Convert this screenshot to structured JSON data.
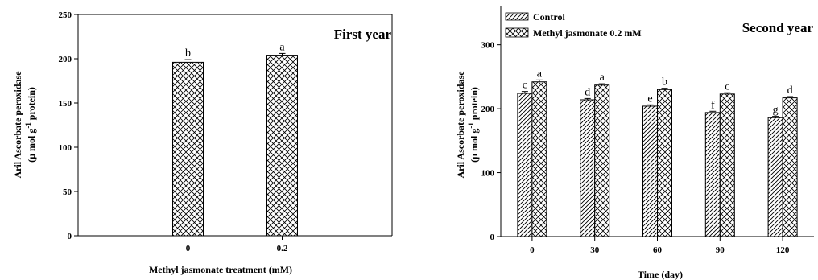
{
  "chart_data": [
    {
      "type": "bar",
      "title": "First year",
      "xlabel": "Methyl jasmonate treatment (mM)",
      "ylabel_line1": "Aril Ascorbate peroxidase",
      "ylabel_line2_prefix": "(µ mol g",
      "ylabel_line2_sup": "-1",
      "ylabel_line2_suffix": " protein)",
      "ylim": [
        0,
        250
      ],
      "yticks": [
        "0",
        "50",
        "100",
        "150",
        "200",
        "250"
      ],
      "categories": [
        "0",
        "0.2"
      ],
      "values": [
        196,
        204
      ],
      "errors": [
        3,
        2
      ],
      "letters": [
        "b",
        "a"
      ],
      "pattern": "crosshatch"
    },
    {
      "type": "bar",
      "title": "Second year",
      "xlabel": "Time (day)",
      "ylabel_line1": "Aril Ascorbate peroxidase",
      "ylabel_line2_prefix": "(µ mol g",
      "ylabel_line2_sup": "-1",
      "ylabel_line2_suffix": " protein)",
      "ylim": [
        0,
        360
      ],
      "yticks": [
        "0",
        "100",
        "200",
        "300"
      ],
      "categories": [
        "0",
        "30",
        "60",
        "90",
        "120"
      ],
      "legend_position": "top-left",
      "series": [
        {
          "name": "Control",
          "pattern": "diagonal",
          "values": [
            224,
            214,
            204,
            194,
            186
          ],
          "errors": [
            3,
            2,
            2,
            2,
            2
          ],
          "letters": [
            "c",
            "d",
            "e",
            "f",
            "g"
          ]
        },
        {
          "name": "Methyl jasmonate 0.2 mM",
          "pattern": "crosshatch",
          "values": [
            242,
            237,
            230,
            223,
            217
          ],
          "errors": [
            3,
            2,
            2,
            2,
            2
          ],
          "letters": [
            "a",
            "a",
            "b",
            "c",
            "d"
          ]
        }
      ]
    }
  ]
}
